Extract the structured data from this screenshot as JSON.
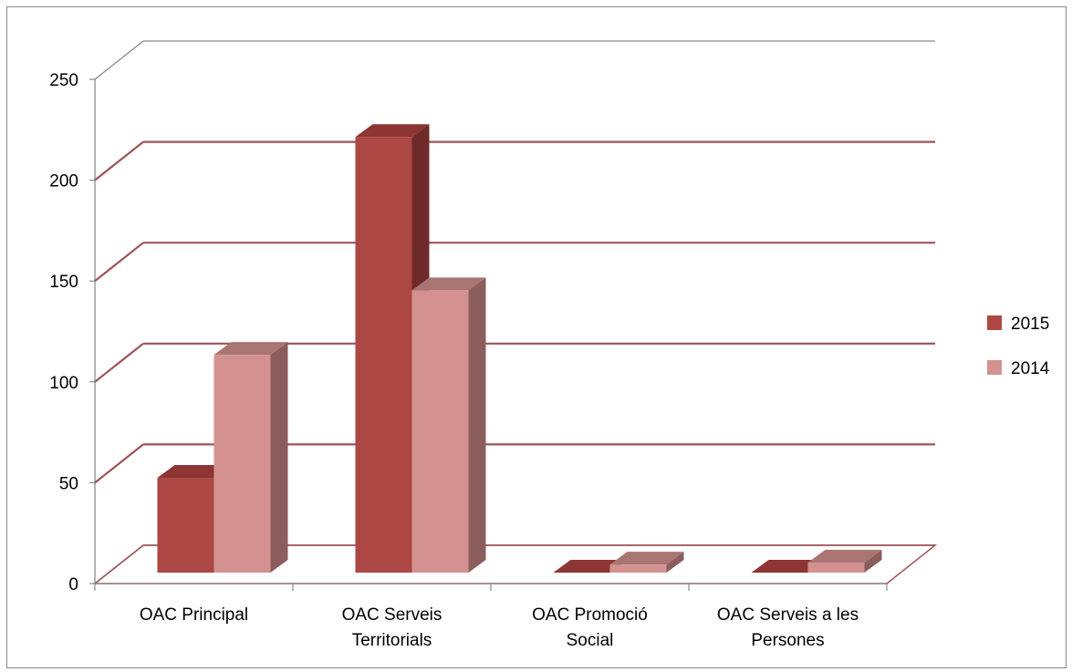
{
  "chart_data": {
    "type": "bar",
    "style": "3d-clustered-column",
    "categories": [
      [
        "OAC Principal"
      ],
      [
        "OAC Serveis",
        "Territorials"
      ],
      [
        "OAC Promoció",
        "Social"
      ],
      [
        "OAC Serveis a les",
        "Persones"
      ]
    ],
    "series": [
      {
        "name": "2015",
        "values": [
          47,
          216,
          0,
          0
        ],
        "color": "#ad4743",
        "side_color": "#6f2b29",
        "top_color": "#8c3532"
      },
      {
        "name": "2014",
        "values": [
          108,
          140,
          4,
          5
        ],
        "color": "#d39290",
        "side_color": "#8b5d5c",
        "top_color": "#a87573"
      }
    ],
    "ylim": [
      0,
      250
    ],
    "yticks": [
      0,
      50,
      100,
      150,
      200,
      250
    ],
    "grid": true,
    "grid_color": "#9c5356",
    "legend_position": "right"
  }
}
